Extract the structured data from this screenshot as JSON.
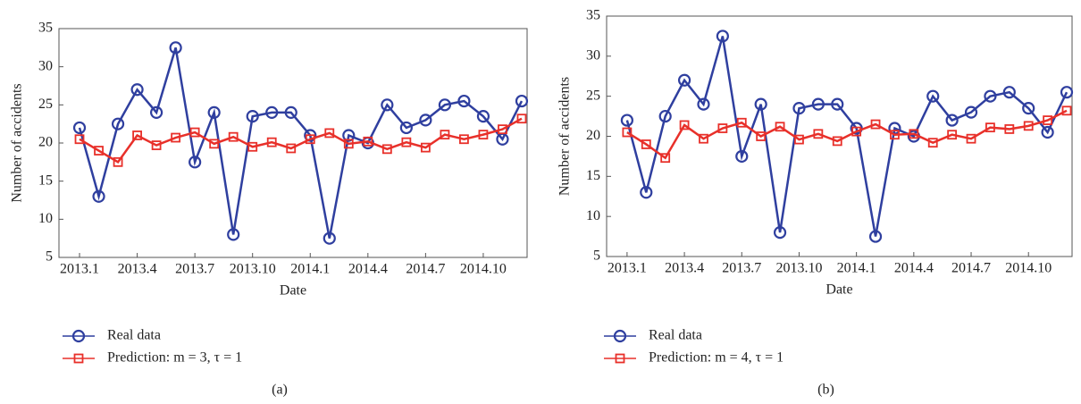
{
  "chart_data": [
    {
      "type": "line",
      "caption": "(a)",
      "xlabel": "Date",
      "ylabel": "Number of accidents",
      "categories": [
        "2013.1",
        null,
        null,
        "2013.4",
        null,
        null,
        "2013.7",
        null,
        null,
        "2013.10",
        null,
        null,
        "2014.1",
        null,
        null,
        "2014.4",
        null,
        null,
        "2014.7",
        null,
        null,
        "2014.10",
        null,
        null
      ],
      "ylim": [
        5,
        35
      ],
      "yticks": [
        5,
        10,
        15,
        20,
        25,
        30,
        35
      ],
      "series": [
        {
          "name": "Real data",
          "color": "#2f3f9f",
          "marker": "circle",
          "values": [
            22,
            13,
            22.5,
            27,
            24,
            32.5,
            17.5,
            24,
            8,
            23.5,
            24,
            24,
            21,
            7.5,
            21,
            20,
            25,
            22,
            23,
            25,
            25.5,
            23.5,
            20.5,
            25.5
          ]
        },
        {
          "name": "Prediction: m = 3, τ = 1",
          "color": "#e8302a",
          "marker": "square",
          "values": [
            20.5,
            19,
            17.5,
            21,
            19.7,
            20.7,
            21.4,
            19.9,
            20.8,
            19.5,
            20.1,
            19.3,
            20.5,
            21.3,
            19.9,
            20.2,
            19.2,
            20.1,
            19.4,
            21.1,
            20.5,
            21.1,
            21.8,
            23.2
          ]
        }
      ]
    },
    {
      "type": "line",
      "caption": "(b)",
      "xlabel": "Date",
      "ylabel": "Number of accidents",
      "categories": [
        "2013.1",
        null,
        null,
        "2013.4",
        null,
        null,
        "2013.7",
        null,
        null,
        "2013.10",
        null,
        null,
        "2014.1",
        null,
        null,
        "2014.4",
        null,
        null,
        "2014.7",
        null,
        null,
        "2014.10",
        null,
        null
      ],
      "ylim": [
        5,
        35
      ],
      "yticks": [
        5,
        10,
        15,
        20,
        25,
        30,
        35
      ],
      "series": [
        {
          "name": "Real data",
          "color": "#2f3f9f",
          "marker": "circle",
          "values": [
            22,
            13,
            22.5,
            27,
            24,
            32.5,
            17.5,
            24,
            8,
            23.5,
            24,
            24,
            21,
            7.5,
            21,
            20,
            25,
            22,
            23,
            25,
            25.5,
            23.5,
            20.5,
            25.5
          ]
        },
        {
          "name": "Prediction: m = 4, τ = 1",
          "color": "#e8302a",
          "marker": "square",
          "values": [
            20.5,
            19,
            17.3,
            21.4,
            19.7,
            21,
            21.7,
            20,
            21.2,
            19.6,
            20.3,
            19.4,
            20.6,
            21.5,
            20.2,
            20.3,
            19.2,
            20.2,
            19.7,
            21.1,
            20.9,
            21.3,
            22,
            23.2
          ]
        }
      ]
    }
  ]
}
